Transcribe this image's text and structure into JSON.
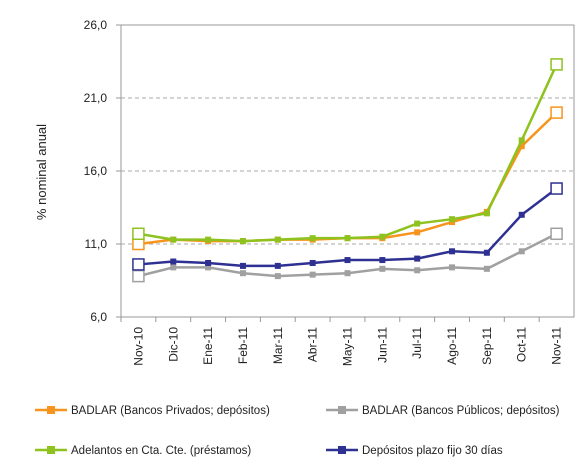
{
  "chart_data": {
    "type": "line",
    "y_label": "% nominal anual",
    "categories": [
      "Nov-10",
      "Dic-10",
      "Ene-11",
      "Feb-11",
      "Mar-11",
      "Abr-11",
      "May-11",
      "Jun-11",
      "Jul-11",
      "Ago-11",
      "Sep-11",
      "Oct-11",
      "Nov-11"
    ],
    "series": [
      {
        "name": "BADLAR (Bancos Privados; depósitos)",
        "color": "#f7941d",
        "values": [
          11.0,
          11.3,
          11.2,
          11.2,
          11.3,
          11.3,
          11.4,
          11.4,
          11.8,
          12.5,
          13.2,
          17.7,
          20.0
        ]
      },
      {
        "name": "BADLAR (Bancos Públicos; depósitos)",
        "color": "#a0a0a0",
        "values": [
          8.8,
          9.4,
          9.4,
          9.0,
          8.8,
          8.9,
          9.0,
          9.3,
          9.2,
          9.4,
          9.3,
          10.5,
          11.7
        ]
      },
      {
        "name": "Adelantos en Cta. Cte. (préstamos)",
        "color": "#8dc21f",
        "values": [
          11.7,
          11.3,
          11.3,
          11.2,
          11.3,
          11.4,
          11.4,
          11.5,
          12.4,
          12.7,
          13.1,
          18.1,
          23.3
        ]
      },
      {
        "name": "Depósitos plazo fijo 30 días",
        "color": "#2e3192",
        "values": [
          9.6,
          9.8,
          9.7,
          9.5,
          9.5,
          9.7,
          9.9,
          9.9,
          10.0,
          10.5,
          10.4,
          13.0,
          14.8
        ]
      }
    ],
    "ylim": [
      6,
      26
    ],
    "yticks": [
      {
        "value": 6,
        "label": "6,0"
      },
      {
        "value": 11,
        "label": "11,0"
      },
      {
        "value": 16,
        "label": "16,0"
      },
      {
        "value": 21,
        "label": "21,0"
      },
      {
        "value": 26,
        "label": "26,0"
      }
    ],
    "grid": true
  }
}
